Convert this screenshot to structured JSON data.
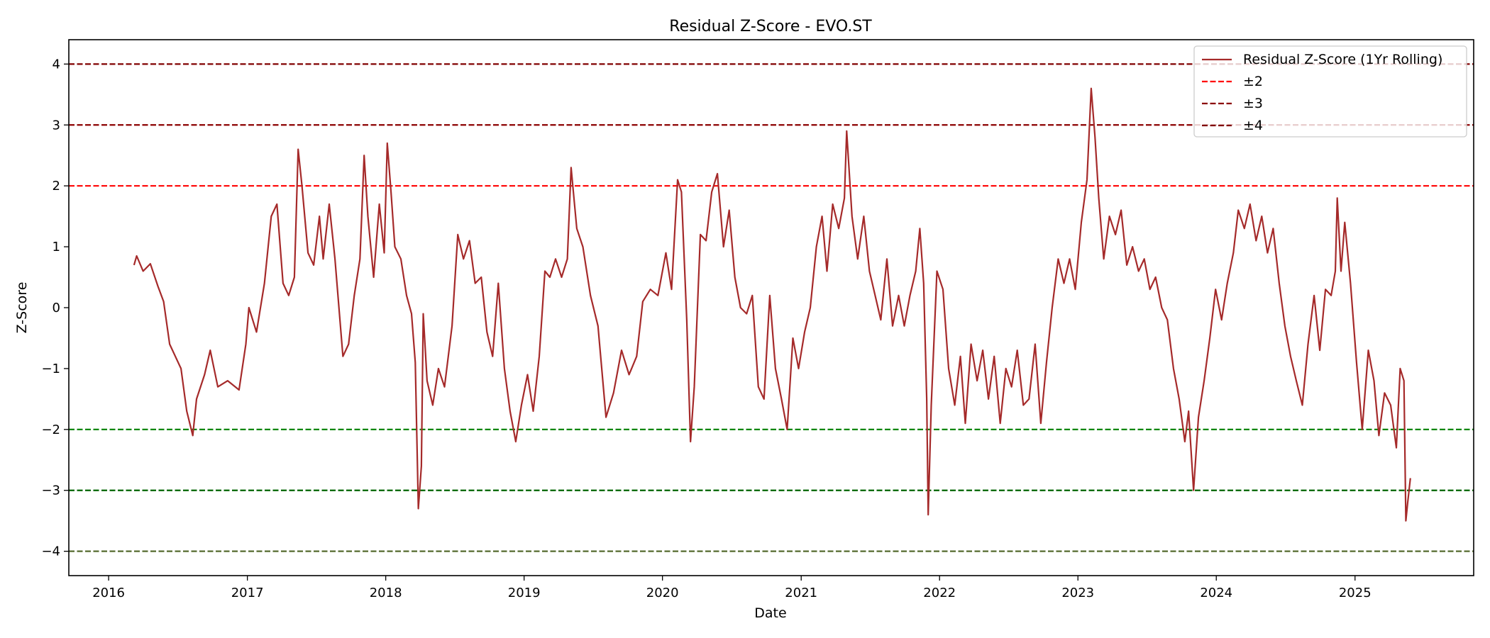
{
  "chart_data": {
    "type": "line",
    "title": "Residual Z-Score - EVO.ST",
    "xlabel": "Date",
    "ylabel": "Z-Score",
    "xlim": [
      "2015-09-18",
      "2025-11-10"
    ],
    "ylim": [
      -4.4,
      4.4
    ],
    "x_ticks": [
      "2016",
      "2017",
      "2018",
      "2019",
      "2020",
      "2021",
      "2022",
      "2023",
      "2024",
      "2025"
    ],
    "y_ticks": [
      4,
      3,
      2,
      1,
      0,
      -1,
      -2,
      -3,
      -4
    ],
    "y_tick_labels": [
      "4",
      "3",
      "2",
      "1",
      "0",
      "−1",
      "−2",
      "−3",
      "−4"
    ],
    "grid": false,
    "legend_position": "top-right",
    "legend": [
      {
        "label": "Residual Z-Score (1Yr Rolling)",
        "color": "#a52a2a",
        "style": "solid"
      },
      {
        "label": "±2",
        "color": "#ff0000",
        "style": "dashed"
      },
      {
        "label": "±3",
        "color": "#8b0000",
        "style": "dashed"
      },
      {
        "label": "±4",
        "color": "#800000",
        "style": "dashed"
      }
    ],
    "threshold_lines": [
      {
        "y": 4,
        "color": "#800000"
      },
      {
        "y": 3,
        "color": "#8b0000"
      },
      {
        "y": 2,
        "color": "#ff0000"
      },
      {
        "y": -2,
        "color": "#008000"
      },
      {
        "y": -3,
        "color": "#006400"
      },
      {
        "y": -4,
        "color": "#556b2f"
      }
    ],
    "series": [
      {
        "name": "Residual Z-Score (1Yr Rolling)",
        "color": "#a52a2a",
        "points": [
          [
            "2016-03-08",
            0.7
          ],
          [
            "2016-03-15",
            0.85
          ],
          [
            "2016-04-01",
            0.6
          ],
          [
            "2016-04-20",
            0.72
          ],
          [
            "2016-05-10",
            0.35
          ],
          [
            "2016-05-25",
            0.1
          ],
          [
            "2016-06-10",
            -0.6
          ],
          [
            "2016-06-25",
            -0.8
          ],
          [
            "2016-07-10",
            -1.0
          ],
          [
            "2016-07-25",
            -1.7
          ],
          [
            "2016-08-10",
            -2.1
          ],
          [
            "2016-08-20",
            -1.5
          ],
          [
            "2016-09-10",
            -1.1
          ],
          [
            "2016-09-25",
            -0.7
          ],
          [
            "2016-10-15",
            -1.3
          ],
          [
            "2016-11-10",
            -1.2
          ],
          [
            "2016-12-10",
            -1.35
          ],
          [
            "2016-12-28",
            -0.6
          ],
          [
            "2017-01-05",
            0.0
          ],
          [
            "2017-01-25",
            -0.4
          ],
          [
            "2017-02-15",
            0.4
          ],
          [
            "2017-03-05",
            1.5
          ],
          [
            "2017-03-20",
            1.7
          ],
          [
            "2017-04-05",
            0.4
          ],
          [
            "2017-04-20",
            0.2
          ],
          [
            "2017-05-05",
            0.5
          ],
          [
            "2017-05-15",
            2.6
          ],
          [
            "2017-05-25",
            2.0
          ],
          [
            "2017-06-10",
            0.9
          ],
          [
            "2017-06-25",
            0.7
          ],
          [
            "2017-07-10",
            1.5
          ],
          [
            "2017-07-20",
            0.8
          ],
          [
            "2017-08-05",
            1.7
          ],
          [
            "2017-08-20",
            0.8
          ],
          [
            "2017-09-10",
            -0.8
          ],
          [
            "2017-09-25",
            -0.6
          ],
          [
            "2017-10-10",
            0.2
          ],
          [
            "2017-10-25",
            0.8
          ],
          [
            "2017-11-05",
            2.5
          ],
          [
            "2017-11-15",
            1.5
          ],
          [
            "2017-11-30",
            0.5
          ],
          [
            "2017-12-15",
            1.7
          ],
          [
            "2017-12-28",
            0.9
          ],
          [
            "2018-01-05",
            2.7
          ],
          [
            "2018-01-15",
            1.9
          ],
          [
            "2018-01-25",
            1.0
          ],
          [
            "2018-02-10",
            0.8
          ],
          [
            "2018-02-25",
            0.2
          ],
          [
            "2018-03-10",
            -0.1
          ],
          [
            "2018-03-20",
            -0.9
          ],
          [
            "2018-03-28",
            -3.3
          ],
          [
            "2018-04-05",
            -2.6
          ],
          [
            "2018-04-10",
            -0.1
          ],
          [
            "2018-04-20",
            -1.2
          ],
          [
            "2018-05-05",
            -1.6
          ],
          [
            "2018-05-20",
            -1.0
          ],
          [
            "2018-06-05",
            -1.3
          ],
          [
            "2018-06-25",
            -0.3
          ],
          [
            "2018-07-10",
            1.2
          ],
          [
            "2018-07-25",
            0.8
          ],
          [
            "2018-08-10",
            1.1
          ],
          [
            "2018-08-25",
            0.4
          ],
          [
            "2018-09-10",
            0.5
          ],
          [
            "2018-09-25",
            -0.4
          ],
          [
            "2018-10-10",
            -0.8
          ],
          [
            "2018-10-25",
            0.4
          ],
          [
            "2018-11-10",
            -1.0
          ],
          [
            "2018-11-25",
            -1.7
          ],
          [
            "2018-12-10",
            -2.2
          ],
          [
            "2018-12-25",
            -1.6
          ],
          [
            "2019-01-10",
            -1.1
          ],
          [
            "2019-01-25",
            -1.7
          ],
          [
            "2019-02-10",
            -0.8
          ],
          [
            "2019-02-25",
            0.6
          ],
          [
            "2019-03-10",
            0.5
          ],
          [
            "2019-03-25",
            0.8
          ],
          [
            "2019-04-10",
            0.5
          ],
          [
            "2019-04-25",
            0.8
          ],
          [
            "2019-05-05",
            2.3
          ],
          [
            "2019-05-20",
            1.3
          ],
          [
            "2019-06-05",
            1.0
          ],
          [
            "2019-06-25",
            0.2
          ],
          [
            "2019-07-15",
            -0.3
          ],
          [
            "2019-08-05",
            -1.8
          ],
          [
            "2019-08-25",
            -1.4
          ],
          [
            "2019-09-15",
            -0.7
          ],
          [
            "2019-10-05",
            -1.1
          ],
          [
            "2019-10-25",
            -0.8
          ],
          [
            "2019-11-10",
            0.1
          ],
          [
            "2019-11-30",
            0.3
          ],
          [
            "2019-12-20",
            0.2
          ],
          [
            "2020-01-10",
            0.9
          ],
          [
            "2020-01-25",
            0.3
          ],
          [
            "2020-02-10",
            2.1
          ],
          [
            "2020-02-20",
            1.9
          ],
          [
            "2020-03-05",
            -0.2
          ],
          [
            "2020-03-15",
            -2.2
          ],
          [
            "2020-03-25",
            -1.3
          ],
          [
            "2020-04-10",
            1.2
          ],
          [
            "2020-04-25",
            1.1
          ],
          [
            "2020-05-10",
            1.9
          ],
          [
            "2020-05-25",
            2.2
          ],
          [
            "2020-06-10",
            1.0
          ],
          [
            "2020-06-25",
            1.6
          ],
          [
            "2020-07-10",
            0.5
          ],
          [
            "2020-07-25",
            0.0
          ],
          [
            "2020-08-10",
            -0.1
          ],
          [
            "2020-08-25",
            0.2
          ],
          [
            "2020-09-10",
            -1.3
          ],
          [
            "2020-09-25",
            -1.5
          ],
          [
            "2020-10-10",
            0.2
          ],
          [
            "2020-10-25",
            -1.0
          ],
          [
            "2020-11-10",
            -1.5
          ],
          [
            "2020-11-25",
            -2.0
          ],
          [
            "2020-12-10",
            -0.5
          ],
          [
            "2020-12-25",
            -1.0
          ],
          [
            "2021-01-10",
            -0.4
          ],
          [
            "2021-01-25",
            0.0
          ],
          [
            "2021-02-10",
            1.0
          ],
          [
            "2021-02-25",
            1.5
          ],
          [
            "2021-03-10",
            0.6
          ],
          [
            "2021-03-25",
            1.7
          ],
          [
            "2021-04-10",
            1.3
          ],
          [
            "2021-04-25",
            1.8
          ],
          [
            "2021-05-01",
            2.9
          ],
          [
            "2021-05-15",
            1.5
          ],
          [
            "2021-05-30",
            0.8
          ],
          [
            "2021-06-15",
            1.5
          ],
          [
            "2021-06-30",
            0.6
          ],
          [
            "2021-07-15",
            0.2
          ],
          [
            "2021-07-30",
            -0.2
          ],
          [
            "2021-08-15",
            0.8
          ],
          [
            "2021-08-30",
            -0.3
          ],
          [
            "2021-09-15",
            0.2
          ],
          [
            "2021-09-30",
            -0.3
          ],
          [
            "2021-10-15",
            0.2
          ],
          [
            "2021-10-30",
            0.6
          ],
          [
            "2021-11-10",
            1.3
          ],
          [
            "2021-11-20",
            0.4
          ],
          [
            "2021-11-28",
            -1.5
          ],
          [
            "2021-12-02",
            -3.4
          ],
          [
            "2021-12-10",
            -1.6
          ],
          [
            "2021-12-25",
            0.6
          ],
          [
            "2022-01-10",
            0.3
          ],
          [
            "2022-01-25",
            -1.0
          ],
          [
            "2022-02-10",
            -1.6
          ],
          [
            "2022-02-25",
            -0.8
          ],
          [
            "2022-03-10",
            -1.9
          ],
          [
            "2022-03-25",
            -0.6
          ],
          [
            "2022-04-10",
            -1.2
          ],
          [
            "2022-04-25",
            -0.7
          ],
          [
            "2022-05-10",
            -1.5
          ],
          [
            "2022-05-25",
            -0.8
          ],
          [
            "2022-06-10",
            -1.9
          ],
          [
            "2022-06-25",
            -1.0
          ],
          [
            "2022-07-10",
            -1.3
          ],
          [
            "2022-07-25",
            -0.7
          ],
          [
            "2022-08-10",
            -1.6
          ],
          [
            "2022-08-25",
            -1.5
          ],
          [
            "2022-09-10",
            -0.6
          ],
          [
            "2022-09-25",
            -1.9
          ],
          [
            "2022-10-10",
            -0.9
          ],
          [
            "2022-10-25",
            0.0
          ],
          [
            "2022-11-10",
            0.8
          ],
          [
            "2022-11-25",
            0.4
          ],
          [
            "2022-12-10",
            0.8
          ],
          [
            "2022-12-25",
            0.3
          ],
          [
            "2023-01-10",
            1.4
          ],
          [
            "2023-01-25",
            2.1
          ],
          [
            "2023-02-05",
            3.6
          ],
          [
            "2023-02-15",
            2.8
          ],
          [
            "2023-02-25",
            1.8
          ],
          [
            "2023-03-10",
            0.8
          ],
          [
            "2023-03-25",
            1.5
          ],
          [
            "2023-04-10",
            1.2
          ],
          [
            "2023-04-25",
            1.6
          ],
          [
            "2023-05-10",
            0.7
          ],
          [
            "2023-05-25",
            1.0
          ],
          [
            "2023-06-10",
            0.6
          ],
          [
            "2023-06-25",
            0.8
          ],
          [
            "2023-07-10",
            0.3
          ],
          [
            "2023-07-25",
            0.5
          ],
          [
            "2023-08-10",
            0.0
          ],
          [
            "2023-08-25",
            -0.2
          ],
          [
            "2023-09-10",
            -1.0
          ],
          [
            "2023-09-25",
            -1.5
          ],
          [
            "2023-10-10",
            -2.2
          ],
          [
            "2023-10-20",
            -1.7
          ],
          [
            "2023-11-02",
            -3.0
          ],
          [
            "2023-11-15",
            -1.8
          ],
          [
            "2023-11-30",
            -1.2
          ],
          [
            "2023-12-15",
            -0.5
          ],
          [
            "2023-12-30",
            0.3
          ],
          [
            "2024-01-15",
            -0.2
          ],
          [
            "2024-01-30",
            0.4
          ],
          [
            "2024-02-15",
            0.9
          ],
          [
            "2024-02-28",
            1.6
          ],
          [
            "2024-03-15",
            1.3
          ],
          [
            "2024-03-30",
            1.7
          ],
          [
            "2024-04-15",
            1.1
          ],
          [
            "2024-04-30",
            1.5
          ],
          [
            "2024-05-15",
            0.9
          ],
          [
            "2024-05-30",
            1.3
          ],
          [
            "2024-06-15",
            0.4
          ],
          [
            "2024-06-30",
            -0.3
          ],
          [
            "2024-07-15",
            -0.8
          ],
          [
            "2024-07-30",
            -1.2
          ],
          [
            "2024-08-15",
            -1.6
          ],
          [
            "2024-08-30",
            -0.6
          ],
          [
            "2024-09-15",
            0.2
          ],
          [
            "2024-09-30",
            -0.7
          ],
          [
            "2024-10-15",
            0.3
          ],
          [
            "2024-10-30",
            0.2
          ],
          [
            "2024-11-10",
            0.6
          ],
          [
            "2024-11-15",
            1.8
          ],
          [
            "2024-11-25",
            0.6
          ],
          [
            "2024-12-05",
            1.4
          ],
          [
            "2024-12-20",
            0.4
          ],
          [
            "2025-01-05",
            -0.9
          ],
          [
            "2025-01-20",
            -2.0
          ],
          [
            "2025-02-05",
            -0.7
          ],
          [
            "2025-02-20",
            -1.2
          ],
          [
            "2025-03-05",
            -2.1
          ],
          [
            "2025-03-20",
            -1.4
          ],
          [
            "2025-04-05",
            -1.6
          ],
          [
            "2025-04-20",
            -2.3
          ],
          [
            "2025-04-30",
            -1.0
          ],
          [
            "2025-05-10",
            -1.2
          ],
          [
            "2025-05-15",
            -3.5
          ],
          [
            "2025-05-20",
            -3.2
          ],
          [
            "2025-05-27",
            -2.8
          ]
        ]
      }
    ]
  }
}
